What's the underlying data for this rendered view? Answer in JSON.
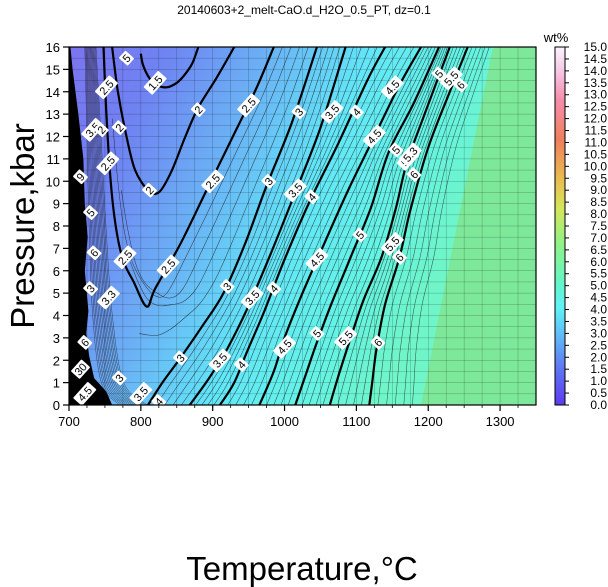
{
  "chart_data": {
    "type": "heatmap",
    "title": "20140603+2_melt-CaO.d_H2O_0.5_PT, dz=0.1",
    "xlabel": "Temperature,°C",
    "ylabel": "Pressure,kbar",
    "xlim": [
      700,
      1350
    ],
    "ylim": [
      0,
      16
    ],
    "x_ticks": [
      700,
      800,
      900,
      1000,
      1100,
      1200,
      1300
    ],
    "y_ticks": [
      0,
      1,
      2,
      3,
      4,
      5,
      6,
      7,
      8,
      9,
      10,
      11,
      12,
      13,
      14,
      15,
      16
    ],
    "grid": true,
    "colorbar": {
      "label": "wt%",
      "range": [
        0,
        15
      ],
      "ticks": [
        "0.0",
        "0.5",
        "1.0",
        "1.5",
        "2.0",
        "2.5",
        "3.0",
        "3.5",
        "4.0",
        "4.5",
        "5.0",
        "5.5",
        "6.0",
        "6.5",
        "7.0",
        "7.5",
        "8.0",
        "8.5",
        "9.0",
        "9.5",
        "10.0",
        "10.5",
        "11.0",
        "11.5",
        "12.0",
        "12.5",
        "13.0",
        "13.5",
        "14.0",
        "14.5",
        "15.0"
      ],
      "placement": "right"
    },
    "saturated_region": {
      "value_wt_pct": 7.0,
      "color": "#7de899",
      "boundary_T_at_P0": 1190,
      "boundary_T_at_P16": 1290
    },
    "contours": [
      {
        "level": 1.5,
        "points": [
          [
            800,
            15.7
          ],
          [
            803,
            15.2
          ],
          [
            812,
            14.6
          ],
          [
            822,
            14.3
          ],
          [
            836,
            14.2
          ],
          [
            850,
            14.4
          ],
          [
            862,
            14.8
          ],
          [
            872,
            15.3
          ],
          [
            880,
            16
          ]
        ]
      },
      {
        "level": 2,
        "points": [
          [
            760,
            16
          ],
          [
            768,
            14
          ],
          [
            780,
            12
          ],
          [
            792,
            10.5
          ],
          [
            810,
            9.6
          ],
          [
            825,
            9.5
          ],
          [
            842,
            10.4
          ],
          [
            862,
            12
          ],
          [
            880,
            13.3
          ],
          [
            905,
            14.6
          ],
          [
            930,
            16
          ]
        ]
      },
      {
        "level": 2.5,
        "points": [
          [
            748,
            16
          ],
          [
            752,
            13
          ],
          [
            758,
            10
          ],
          [
            765,
            8
          ],
          [
            775,
            6.5
          ],
          [
            790,
            5.5
          ],
          [
            808,
            4.4
          ],
          [
            820,
            5.2
          ],
          [
            855,
            7.2
          ],
          [
            890,
            9.5
          ],
          [
            925,
            11.8
          ],
          [
            960,
            14.1
          ],
          [
            985,
            16
          ]
        ]
      },
      {
        "level": 3,
        "points": [
          [
            810,
            0
          ],
          [
            830,
            1
          ],
          [
            855,
            2.1
          ],
          [
            885,
            3.5
          ],
          [
            915,
            5
          ],
          [
            945,
            7.2
          ],
          [
            975,
            9.8
          ],
          [
            1010,
            12.6
          ],
          [
            1045,
            16
          ]
        ]
      },
      {
        "level": 3.5,
        "points": [
          [
            868,
            0
          ],
          [
            895,
            1.2
          ],
          [
            920,
            2.5
          ],
          [
            948,
            4.3
          ],
          [
            980,
            6.7
          ],
          [
            1015,
            9.5
          ],
          [
            1050,
            12.4
          ],
          [
            1085,
            16
          ]
        ]
      },
      {
        "level": 4,
        "points": [
          [
            910,
            0
          ],
          [
            930,
            1
          ],
          [
            948,
            2.4
          ],
          [
            972,
            4.2
          ],
          [
            1000,
            6.5
          ],
          [
            1035,
            9.1
          ],
          [
            1075,
            11.7
          ],
          [
            1115,
            14.5
          ],
          [
            1140,
            16
          ]
        ]
      },
      {
        "level": 4.5,
        "points": [
          [
            965,
            0
          ],
          [
            985,
            1.5
          ],
          [
            1000,
            3
          ],
          [
            1025,
            5
          ],
          [
            1055,
            7.2
          ],
          [
            1090,
            9.7
          ],
          [
            1125,
            12
          ],
          [
            1160,
            14.3
          ],
          [
            1190,
            16
          ]
        ]
      },
      {
        "level": 5,
        "points": [
          [
            1015,
            0
          ],
          [
            1030,
            1.4
          ],
          [
            1045,
            2.8
          ],
          [
            1065,
            4.5
          ],
          [
            1092,
            6.6
          ],
          [
            1120,
            8.8
          ],
          [
            1145,
            11.3
          ],
          [
            1180,
            13.5
          ],
          [
            1215,
            16
          ]
        ]
      },
      {
        "level": 5.5,
        "points": [
          [
            1063,
            0
          ],
          [
            1075,
            1.3
          ],
          [
            1090,
            2.8
          ],
          [
            1110,
            4.7
          ],
          [
            1135,
            6.6
          ],
          [
            1155,
            8.8
          ],
          [
            1170,
            10.8
          ],
          [
            1195,
            13
          ],
          [
            1230,
            16
          ]
        ]
      },
      {
        "level": 6,
        "points": [
          [
            1118,
            0
          ],
          [
            1122,
            1
          ],
          [
            1128,
            2.5
          ],
          [
            1140,
            4.5
          ],
          [
            1160,
            6.6
          ],
          [
            1175,
            8.7
          ],
          [
            1200,
            11.5
          ],
          [
            1230,
            14
          ],
          [
            1255,
            16
          ]
        ]
      }
    ],
    "contour_labels": [
      {
        "text": "1.5",
        "T": 820,
        "P": 14.4
      },
      {
        "text": "2",
        "T": 812,
        "P": 9.6
      },
      {
        "text": "2",
        "T": 770,
        "P": 12.4
      },
      {
        "text": "2",
        "T": 880,
        "P": 13.2
      },
      {
        "text": "2.5",
        "T": 752,
        "P": 14.2
      },
      {
        "text": "2.5",
        "T": 754,
        "P": 10.8
      },
      {
        "text": "2.5",
        "T": 778,
        "P": 6.6
      },
      {
        "text": "2.5",
        "T": 838,
        "P": 6.2
      },
      {
        "text": "2.5",
        "T": 900,
        "P": 10
      },
      {
        "text": "2.5",
        "T": 950,
        "P": 13.4
      },
      {
        "text": "3",
        "T": 855,
        "P": 2.1
      },
      {
        "text": "3",
        "T": 920,
        "P": 5.3
      },
      {
        "text": "3",
        "T": 978,
        "P": 10
      },
      {
        "text": "3",
        "T": 1020,
        "P": 13.1
      },
      {
        "text": "3.5",
        "T": 910,
        "P": 2
      },
      {
        "text": "3.5",
        "T": 955,
        "P": 4.8
      },
      {
        "text": "3.5",
        "T": 1015,
        "P": 9.6
      },
      {
        "text": "3.5",
        "T": 1066,
        "P": 13.1
      },
      {
        "text": "4",
        "T": 940,
        "P": 1.8
      },
      {
        "text": "4",
        "T": 985,
        "P": 5.2
      },
      {
        "text": "4",
        "T": 1038,
        "P": 9.3
      },
      {
        "text": "4",
        "T": 1100,
        "P": 13.1
      },
      {
        "text": "4.5",
        "T": 1000,
        "P": 2.6
      },
      {
        "text": "4.5",
        "T": 1045,
        "P": 6.5
      },
      {
        "text": "4.5",
        "T": 1125,
        "P": 12
      },
      {
        "text": "4.5",
        "T": 1150,
        "P": 14.2
      },
      {
        "text": "5",
        "T": 1045,
        "P": 3.2
      },
      {
        "text": "5",
        "T": 1105,
        "P": 7.6
      },
      {
        "text": "5",
        "T": 1155,
        "P": 11.4
      },
      {
        "text": "5",
        "T": 1215,
        "P": 14.8
      },
      {
        "text": "5.5",
        "T": 1085,
        "P": 3
      },
      {
        "text": "5.5",
        "T": 1150,
        "P": 7.2
      },
      {
        "text": "5.5",
        "T": 1172,
        "P": 11
      },
      {
        "text": "5.5",
        "T": 1232,
        "P": 14.6
      },
      {
        "text": "6",
        "T": 1130,
        "P": 2.8
      },
      {
        "text": "6",
        "T": 1160,
        "P": 6.6
      },
      {
        "text": "6",
        "T": 1180,
        "P": 10.3
      },
      {
        "text": "6",
        "T": 1245,
        "P": 14.3
      },
      {
        "text": "5.3",
        "T": 1175,
        "P": 11.2
      },
      {
        "text": "5",
        "T": 780,
        "P": 15.5
      },
      {
        "text": "9",
        "T": 716,
        "P": 10.2
      },
      {
        "text": "5",
        "T": 730,
        "P": 8.6
      },
      {
        "text": "6",
        "T": 735,
        "P": 6.8
      },
      {
        "text": "3",
        "T": 730,
        "P": 5.2
      },
      {
        "text": "3.3",
        "T": 755,
        "P": 4.8
      },
      {
        "text": "6",
        "T": 722,
        "P": 2.8
      },
      {
        "text": "30",
        "T": 716,
        "P": 1.6
      },
      {
        "text": "3",
        "T": 770,
        "P": 1.2
      },
      {
        "text": "4.5",
        "T": 722,
        "P": 0.5
      },
      {
        "text": "3.5",
        "T": 800,
        "P": 0.5
      },
      {
        "text": "4",
        "T": 825,
        "P": 0.15
      },
      {
        "text": "3.5",
        "T": 733,
        "P": 12.3
      },
      {
        "text": "2",
        "T": 745,
        "P": 12.3
      }
    ]
  }
}
